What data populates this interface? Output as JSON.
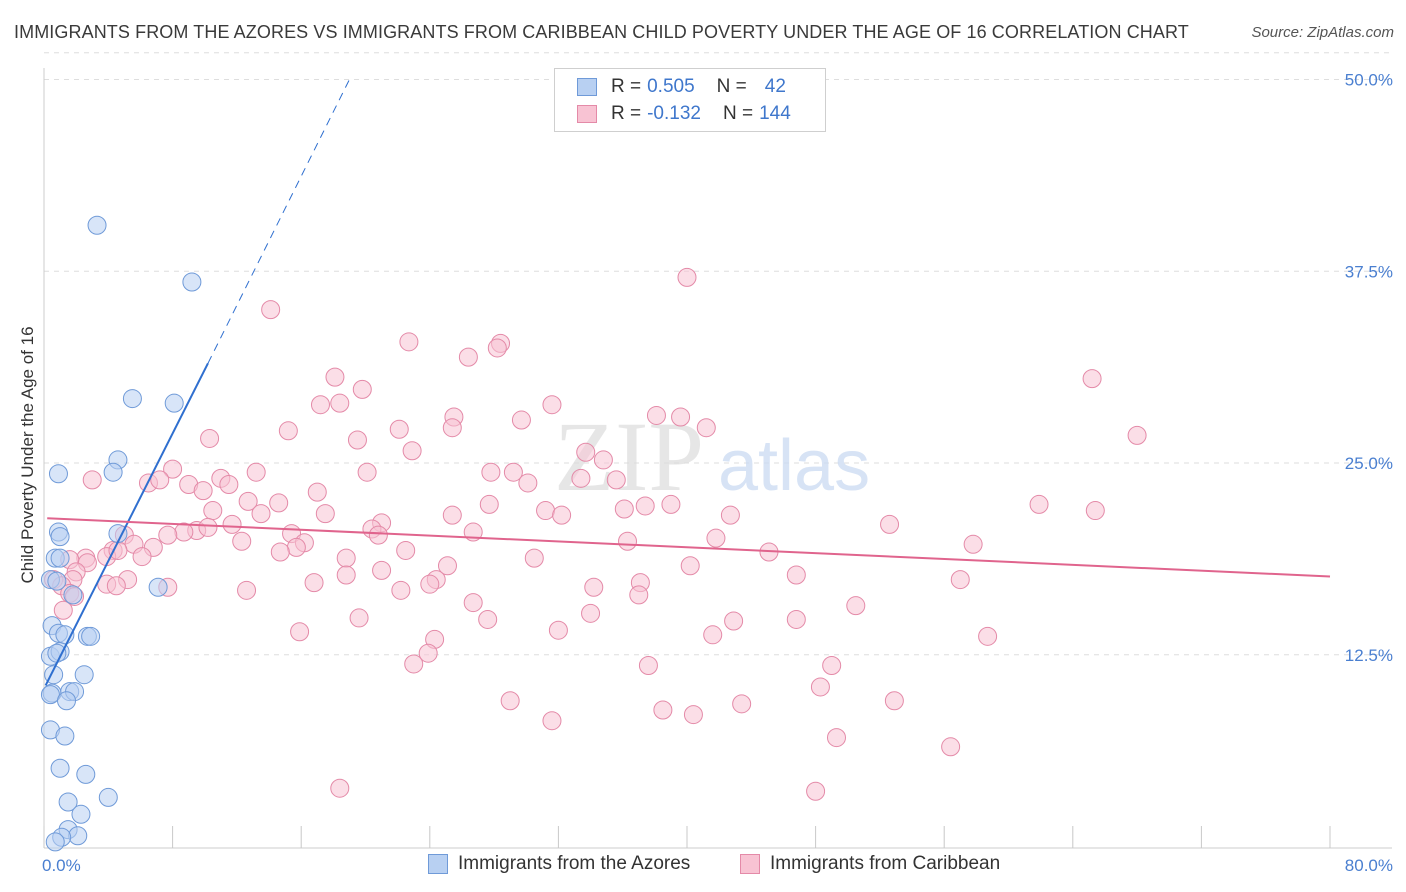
{
  "title": "IMMIGRANTS FROM THE AZORES VS IMMIGRANTS FROM CARIBBEAN CHILD POVERTY UNDER THE AGE OF 16 CORRELATION CHART",
  "source": "Source: ZipAtlas.com",
  "watermark": {
    "zip": "ZIP",
    "atlas": "atlas"
  },
  "legend": {
    "azores": {
      "r_label": "R = ",
      "r_value": "0.505",
      "n_label": "N = ",
      "n_value": "42"
    },
    "caribbean": {
      "r_label": "R = ",
      "r_value": "-0.132",
      "n_label": "N = ",
      "n_value": "144"
    }
  },
  "bottom_legend": {
    "azores": "Immigrants from the Azores",
    "caribbean": "Immigrants from Caribbean"
  },
  "colors": {
    "azores_fill": "#b8d0f2",
    "azores_stroke": "#6f9ad8",
    "azores_line": "#2f6fcf",
    "caribbean_fill": "#f8c3d3",
    "caribbean_stroke": "#e48aa8",
    "caribbean_line": "#e0648d",
    "tick_text": "#4a7fd0"
  },
  "chart_data": {
    "type": "scatter",
    "title": "IMMIGRANTS FROM THE AZORES VS IMMIGRANTS FROM CARIBBEAN CHILD POVERTY UNDER THE AGE OF 16 CORRELATION CHART",
    "xlabel": "",
    "ylabel": "Child Poverty Under the Age of 16",
    "xlim": [
      0,
      80
    ],
    "ylim": [
      0,
      52
    ],
    "x_tick_labels": [
      "0.0%",
      "80.0%"
    ],
    "y_ticks": [
      12.5,
      25.0,
      37.5,
      50.0
    ],
    "y_tick_labels": [
      "12.5%",
      "25.0%",
      "37.5%",
      "50.0%"
    ],
    "grid": true,
    "legend_position": "top-center",
    "series": [
      {
        "name": "Immigrants from the Azores",
        "R": 0.505,
        "N": 42,
        "trend": {
          "x0": 0.1,
          "y0": 10.5,
          "x1": 10.2,
          "y1": 31.5,
          "dash_to_x": 19,
          "dash_to_y": 50
        },
        "points": [
          [
            3.3,
            40.5
          ],
          [
            9.2,
            36.8
          ],
          [
            5.5,
            29.2
          ],
          [
            8.1,
            28.9
          ],
          [
            4.6,
            25.2
          ],
          [
            0.9,
            24.3
          ],
          [
            4.3,
            24.4
          ],
          [
            4.6,
            20.4
          ],
          [
            0.9,
            20.5
          ],
          [
            1.0,
            20.2
          ],
          [
            0.7,
            18.8
          ],
          [
            1.0,
            18.8
          ],
          [
            0.4,
            17.4
          ],
          [
            0.8,
            17.3
          ],
          [
            7.1,
            16.9
          ],
          [
            1.8,
            16.4
          ],
          [
            0.5,
            14.4
          ],
          [
            0.9,
            13.9
          ],
          [
            1.3,
            13.8
          ],
          [
            2.7,
            13.7
          ],
          [
            2.9,
            13.7
          ],
          [
            0.4,
            12.4
          ],
          [
            1.0,
            12.7
          ],
          [
            0.8,
            12.6
          ],
          [
            0.6,
            11.2
          ],
          [
            2.5,
            11.2
          ],
          [
            0.5,
            10.0
          ],
          [
            1.6,
            10.1
          ],
          [
            1.9,
            10.1
          ],
          [
            0.4,
            9.9
          ],
          [
            1.4,
            9.5
          ],
          [
            0.4,
            7.6
          ],
          [
            1.3,
            7.2
          ],
          [
            1.0,
            5.1
          ],
          [
            2.6,
            4.7
          ],
          [
            1.5,
            2.9
          ],
          [
            4.0,
            3.2
          ],
          [
            2.3,
            2.1
          ],
          [
            1.5,
            1.1
          ],
          [
            2.1,
            0.7
          ],
          [
            1.1,
            0.6
          ],
          [
            0.7,
            0.3
          ]
        ]
      },
      {
        "name": "Immigrants from Caribbean",
        "R": -0.132,
        "N": 144,
        "trend": {
          "x0": 0.2,
          "y0": 21.4,
          "x1": 80,
          "y1": 17.6
        },
        "points": [
          [
            40.0,
            37.1
          ],
          [
            14.1,
            35.0
          ],
          [
            22.7,
            32.9
          ],
          [
            28.4,
            32.8
          ],
          [
            28.2,
            32.5
          ],
          [
            26.4,
            31.9
          ],
          [
            18.1,
            30.6
          ],
          [
            65.2,
            30.5
          ],
          [
            19.8,
            29.8
          ],
          [
            18.4,
            28.9
          ],
          [
            31.6,
            28.8
          ],
          [
            17.2,
            28.8
          ],
          [
            25.5,
            28.0
          ],
          [
            38.1,
            28.1
          ],
          [
            39.6,
            28.0
          ],
          [
            29.7,
            27.8
          ],
          [
            41.2,
            27.3
          ],
          [
            25.4,
            27.3
          ],
          [
            22.1,
            27.2
          ],
          [
            15.2,
            27.1
          ],
          [
            10.3,
            26.6
          ],
          [
            19.5,
            26.5
          ],
          [
            68.0,
            26.8
          ],
          [
            22.9,
            25.8
          ],
          [
            33.7,
            25.7
          ],
          [
            34.8,
            25.2
          ],
          [
            8.0,
            24.6
          ],
          [
            20.1,
            24.4
          ],
          [
            13.2,
            24.4
          ],
          [
            27.8,
            24.4
          ],
          [
            29.2,
            24.4
          ],
          [
            3.0,
            23.9
          ],
          [
            33.4,
            24.0
          ],
          [
            35.6,
            23.9
          ],
          [
            11.0,
            24.0
          ],
          [
            11.5,
            23.6
          ],
          [
            6.5,
            23.7
          ],
          [
            9.0,
            23.6
          ],
          [
            30.1,
            23.7
          ],
          [
            9.9,
            23.2
          ],
          [
            17.0,
            23.1
          ],
          [
            7.2,
            23.9
          ],
          [
            12.7,
            22.5
          ],
          [
            14.6,
            22.4
          ],
          [
            39.0,
            22.3
          ],
          [
            27.7,
            22.3
          ],
          [
            37.4,
            22.2
          ],
          [
            31.2,
            21.9
          ],
          [
            36.1,
            22.0
          ],
          [
            61.9,
            22.3
          ],
          [
            65.4,
            21.9
          ],
          [
            10.5,
            21.9
          ],
          [
            17.5,
            21.7
          ],
          [
            13.5,
            21.7
          ],
          [
            25.4,
            21.6
          ],
          [
            32.2,
            21.6
          ],
          [
            42.7,
            21.6
          ],
          [
            11.7,
            21.0
          ],
          [
            21.0,
            21.1
          ],
          [
            52.6,
            21.0
          ],
          [
            20.4,
            20.7
          ],
          [
            9.5,
            20.6
          ],
          [
            8.7,
            20.5
          ],
          [
            7.7,
            20.3
          ],
          [
            26.7,
            20.5
          ],
          [
            10.2,
            20.8
          ],
          [
            5.0,
            20.3
          ],
          [
            15.4,
            20.4
          ],
          [
            20.8,
            20.3
          ],
          [
            12.3,
            19.9
          ],
          [
            16.2,
            19.8
          ],
          [
            15.7,
            19.5
          ],
          [
            36.3,
            19.9
          ],
          [
            5.6,
            19.7
          ],
          [
            6.8,
            19.5
          ],
          [
            4.3,
            19.3
          ],
          [
            57.8,
            19.7
          ],
          [
            22.5,
            19.3
          ],
          [
            14.7,
            19.2
          ],
          [
            3.9,
            18.9
          ],
          [
            6.1,
            18.9
          ],
          [
            45.1,
            19.2
          ],
          [
            4.6,
            19.3
          ],
          [
            18.8,
            18.8
          ],
          [
            2.6,
            18.8
          ],
          [
            1.6,
            18.7
          ],
          [
            2.7,
            18.5
          ],
          [
            30.5,
            18.8
          ],
          [
            40.2,
            18.3
          ],
          [
            25.1,
            18.3
          ],
          [
            2.0,
            17.9
          ],
          [
            21.0,
            18.0
          ],
          [
            18.8,
            17.7
          ],
          [
            46.8,
            17.7
          ],
          [
            0.6,
            17.4
          ],
          [
            5.2,
            17.4
          ],
          [
            1.8,
            17.4
          ],
          [
            24.4,
            17.4
          ],
          [
            1.1,
            17.0
          ],
          [
            57.0,
            17.4
          ],
          [
            37.1,
            17.2
          ],
          [
            3.9,
            17.1
          ],
          [
            16.8,
            17.2
          ],
          [
            4.5,
            17.0
          ],
          [
            24.0,
            17.1
          ],
          [
            34.2,
            16.9
          ],
          [
            7.7,
            16.9
          ],
          [
            22.2,
            16.7
          ],
          [
            12.6,
            16.7
          ],
          [
            1.6,
            16.5
          ],
          [
            37.0,
            16.4
          ],
          [
            1.9,
            16.3
          ],
          [
            26.7,
            15.9
          ],
          [
            50.5,
            15.7
          ],
          [
            1.2,
            15.4
          ],
          [
            34.0,
            15.2
          ],
          [
            19.6,
            14.9
          ],
          [
            27.6,
            14.8
          ],
          [
            42.9,
            14.7
          ],
          [
            46.8,
            14.8
          ],
          [
            32.0,
            14.1
          ],
          [
            15.9,
            14.0
          ],
          [
            41.6,
            13.8
          ],
          [
            58.7,
            13.7
          ],
          [
            24.3,
            13.5
          ],
          [
            23.9,
            12.6
          ],
          [
            23.0,
            11.9
          ],
          [
            37.6,
            11.8
          ],
          [
            49.0,
            11.8
          ],
          [
            48.3,
            10.4
          ],
          [
            29.0,
            9.5
          ],
          [
            52.9,
            9.5
          ],
          [
            43.4,
            9.3
          ],
          [
            38.5,
            8.9
          ],
          [
            40.4,
            8.6
          ],
          [
            31.6,
            8.2
          ],
          [
            49.3,
            7.1
          ],
          [
            56.4,
            6.5
          ],
          [
            18.4,
            3.8
          ],
          [
            48.0,
            3.6
          ],
          [
            41.8,
            20.1
          ]
        ]
      }
    ]
  }
}
